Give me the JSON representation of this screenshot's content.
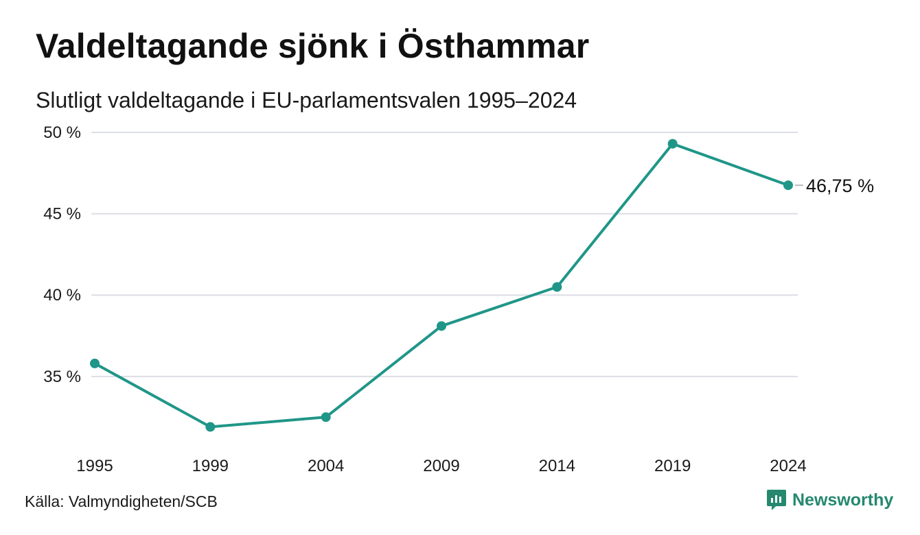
{
  "title": "Valdeltagande sjönk i Östhammar",
  "subtitle": "Slutligt valdeltagande i EU-parlamentsvalen 1995–2024",
  "source": "Källa: Valmyndigheten/SCB",
  "brand": "Newsworthy",
  "colors": {
    "line": "#1f9688",
    "grid": "#dcdee6",
    "brand": "#25886f"
  },
  "icons": [
    "newsworthy-logo-icon"
  ],
  "chart_data": {
    "type": "line",
    "title": "Valdeltagande sjönk i Östhammar",
    "subtitle": "Slutligt valdeltagande i EU-parlamentsvalen 1995–2024",
    "xlabel": "",
    "ylabel": "",
    "categories": [
      "1995",
      "1999",
      "2004",
      "2009",
      "2014",
      "2019",
      "2024"
    ],
    "series": [
      {
        "values": [
          35.8,
          31.9,
          32.5,
          38.1,
          40.5,
          49.3,
          46.75
        ]
      }
    ],
    "ylim": [
      30.4,
      50
    ],
    "yticks": [
      35,
      40,
      45,
      50
    ],
    "ytick_labels": [
      "35 %",
      "40 %",
      "45 %",
      "50 %"
    ],
    "end_label": "46,75 %",
    "grid": true,
    "legend": "none"
  }
}
